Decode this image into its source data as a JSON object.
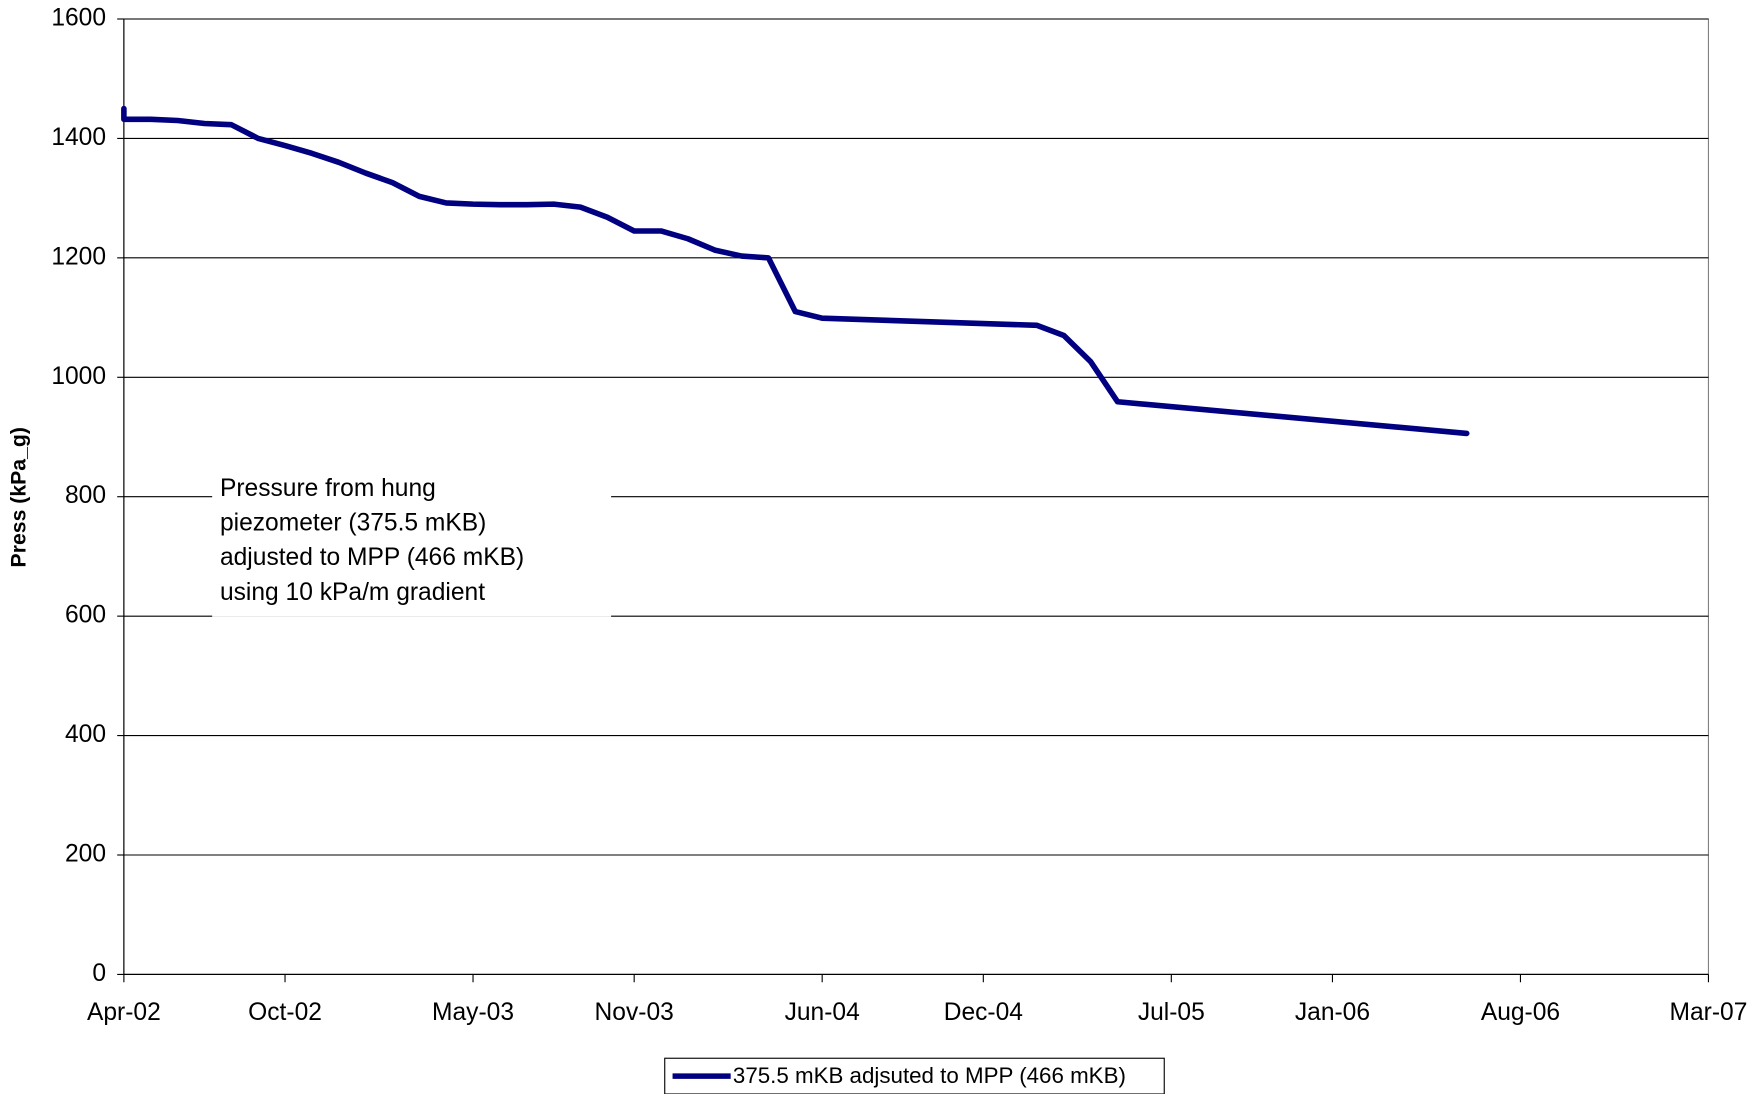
{
  "chart_data": {
    "type": "line",
    "y_label": "Press (kPa_g)",
    "annotation": [
      "Pressure from hung",
      "piezometer (375.5 mKB)",
      "adjusted to MPP (466 mKB)",
      "using 10 kPa/m gradient"
    ],
    "x": [
      "2002-04",
      "2002-04",
      "2002-05",
      "2002-06",
      "2002-07",
      "2002-08",
      "2002-09",
      "2002-10",
      "2002-11",
      "2002-12",
      "2003-01",
      "2003-02",
      "2003-03",
      "2003-04",
      "2003-05",
      "2003-06",
      "2003-07",
      "2003-08",
      "2003-09",
      "2003-10",
      "2003-11",
      "2003-12",
      "2004-01",
      "2004-02",
      "2004-03",
      "2004-04",
      "2004-05",
      "2004-06",
      "2005-02",
      "2005-03",
      "2005-04",
      "2005-05",
      "2006-06"
    ],
    "series": [
      {
        "name": "375.5 mKB adjsuted to MPP (466 mKB)",
        "color": "#000080",
        "values": [
          1450,
          1432,
          1432,
          1430,
          1425,
          1423,
          1400,
          1388,
          1375,
          1360,
          1342,
          1326,
          1303,
          1292,
          1290,
          1289,
          1289,
          1290,
          1285,
          1268,
          1245,
          1245,
          1232,
          1213,
          1203,
          1200,
          1110,
          1099,
          1087,
          1070,
          1026,
          959,
          906
        ]
      }
    ],
    "xlim": [
      "2002-04",
      "2007-03"
    ],
    "xticks": [
      {
        "value": "2002-04",
        "label": "Apr-02"
      },
      {
        "value": "2002-10",
        "label": "Oct-02"
      },
      {
        "value": "2003-05",
        "label": "May-03"
      },
      {
        "value": "2003-11",
        "label": "Nov-03"
      },
      {
        "value": "2004-06",
        "label": "Jun-04"
      },
      {
        "value": "2004-12",
        "label": "Dec-04"
      },
      {
        "value": "2005-07",
        "label": "Jul-05"
      },
      {
        "value": "2006-01",
        "label": "Jan-06"
      },
      {
        "value": "2006-08",
        "label": "Aug-06"
      },
      {
        "value": "2007-03",
        "label": "Mar-07"
      }
    ],
    "ylim": [
      0,
      1600
    ],
    "yticks": [
      0,
      200,
      400,
      600,
      800,
      1000,
      1200,
      1400,
      1600
    ],
    "grid": true,
    "legend": "bottom"
  }
}
